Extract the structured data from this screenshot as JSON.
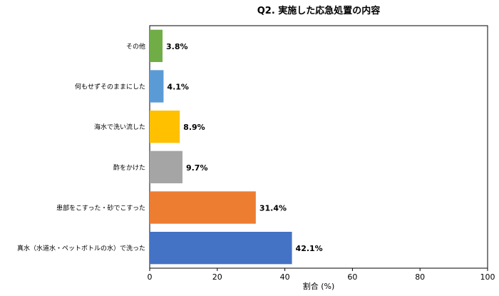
{
  "chart_data": {
    "type": "bar",
    "orientation": "horizontal",
    "title": "Q2. 実施した応急処置の内容",
    "xlabel": "割合 (%)",
    "ylabel": "",
    "xlim": [
      0,
      100
    ],
    "xticks": [
      0,
      20,
      40,
      60,
      80,
      100
    ],
    "grid": false,
    "categories": [
      "その他",
      "何もせずそのままにした",
      "海水で洗い流した",
      "酢をかけた",
      "患部をこすった・砂でこすった",
      "真水（水道水・ペットボトルの水）で洗った"
    ],
    "values": [
      3.8,
      4.1,
      8.9,
      9.7,
      31.4,
      42.1
    ],
    "value_labels": [
      "3.8%",
      "4.1%",
      "8.9%",
      "9.7%",
      "31.4%",
      "42.1%"
    ],
    "colors": [
      "#70AD47",
      "#5B9BD5",
      "#FFC000",
      "#A5A5A5",
      "#ED7D31",
      "#4472C4"
    ]
  }
}
